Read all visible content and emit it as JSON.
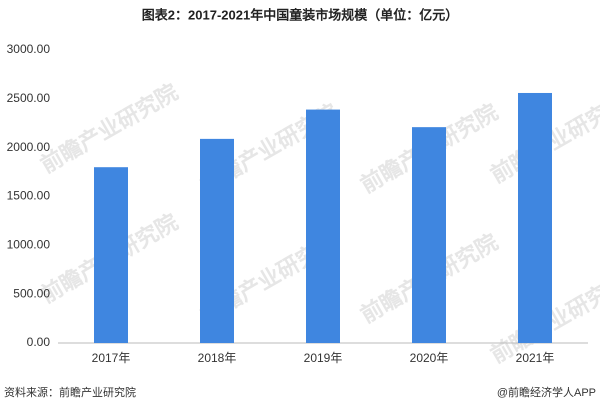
{
  "chart_data": {
    "type": "bar",
    "title": "图表2：2017-2021年中国童装市场规模（单位：亿元）",
    "categories": [
      "2017年",
      "2018年",
      "2019年",
      "2020年",
      "2021年"
    ],
    "values": [
      1800,
      2090,
      2390,
      2210,
      2560
    ],
    "color": "#3f86e0",
    "ylim": [
      0,
      3000
    ],
    "yticks": [
      {
        "value": 0,
        "label": "0.00"
      },
      {
        "value": 500,
        "label": "500.00"
      },
      {
        "value": 1000,
        "label": "1000.00"
      },
      {
        "value": 1500,
        "label": "1500.00"
      },
      {
        "value": 2000,
        "label": "2000.00"
      },
      {
        "value": 2500,
        "label": "2500.00"
      },
      {
        "value": 3000,
        "label": "3000.00"
      }
    ],
    "grid": false,
    "source": "资料来源：前瞻产业研究院",
    "credit": "@前瞻经济学人APP",
    "watermark": "前瞻产业研究院"
  }
}
